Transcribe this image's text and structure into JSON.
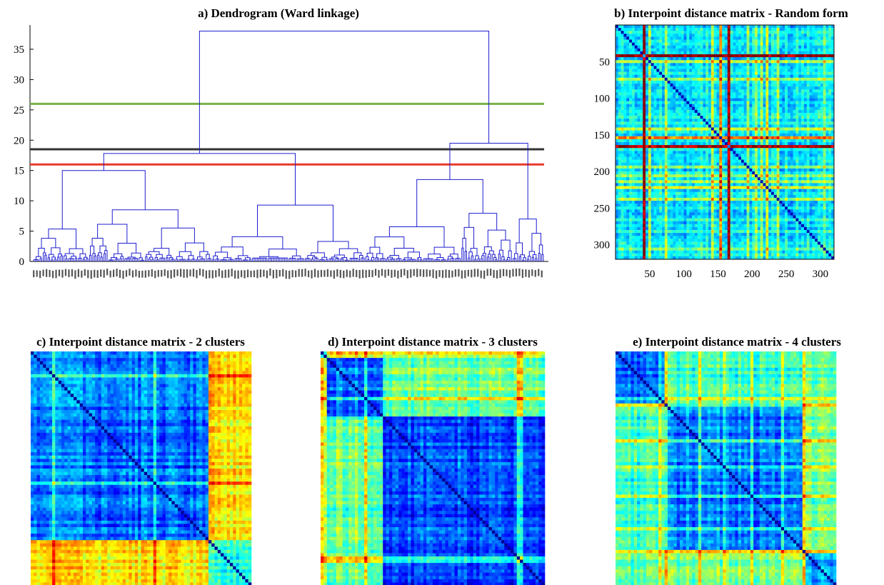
{
  "panels": {
    "a": {
      "title": "a) Dendrogram (Ward linkage)"
    },
    "b": {
      "title": "b) Interpoint distance matrix - Random form"
    },
    "c": {
      "title": "c) Interpoint distance matrix - 2 clusters"
    },
    "d": {
      "title": "d) Interpoint distance matrix - 3 clusters"
    },
    "e": {
      "title": "e) Interpoint distance matrix - 4 clusters"
    }
  },
  "chart_data": [
    {
      "panel": "a",
      "type": "dendrogram",
      "title": "a) Dendrogram (Ward linkage)",
      "ylim": [
        0,
        39
      ],
      "yticks": [
        0,
        5,
        10,
        15,
        20,
        25,
        30,
        35
      ],
      "leaf_count": 320,
      "link_color": "#1f1fd0",
      "cut_lines": [
        {
          "height": 26,
          "color": "#7ab04a"
        },
        {
          "height": 18.5,
          "color": "#333333"
        },
        {
          "height": 16,
          "color": "#e8392a"
        }
      ],
      "merge_heights": {
        "root": 38,
        "left_main": 17.8,
        "left_a": 15,
        "left_b": 9.3,
        "right_main": 19.5,
        "right_a": 13.5,
        "right_b": 7
      }
    },
    {
      "panel": "b",
      "type": "heatmap",
      "title": "b) Interpoint distance matrix - Random form",
      "n": 320,
      "xticks": [
        50,
        100,
        150,
        200,
        250,
        300
      ],
      "yticks": [
        50,
        100,
        150,
        200,
        250,
        300
      ],
      "colormap": "jet"
    },
    {
      "panel": "c",
      "type": "heatmap",
      "title": "c) Interpoint distance matrix - 2 clusters",
      "n": 320,
      "cluster_sizes": [
        254,
        66
      ],
      "colormap": "jet"
    },
    {
      "panel": "d",
      "type": "heatmap",
      "title": "d) Interpoint distance matrix - 3 clusters",
      "n": 320,
      "cluster_sizes": [
        8,
        80,
        232
      ],
      "colormap": "jet"
    },
    {
      "panel": "e",
      "type": "heatmap",
      "title": "e) Interpoint distance matrix - 4 clusters",
      "n": 320,
      "cluster_sizes": [
        68,
        200,
        7,
        45
      ],
      "colormap": "jet"
    }
  ]
}
